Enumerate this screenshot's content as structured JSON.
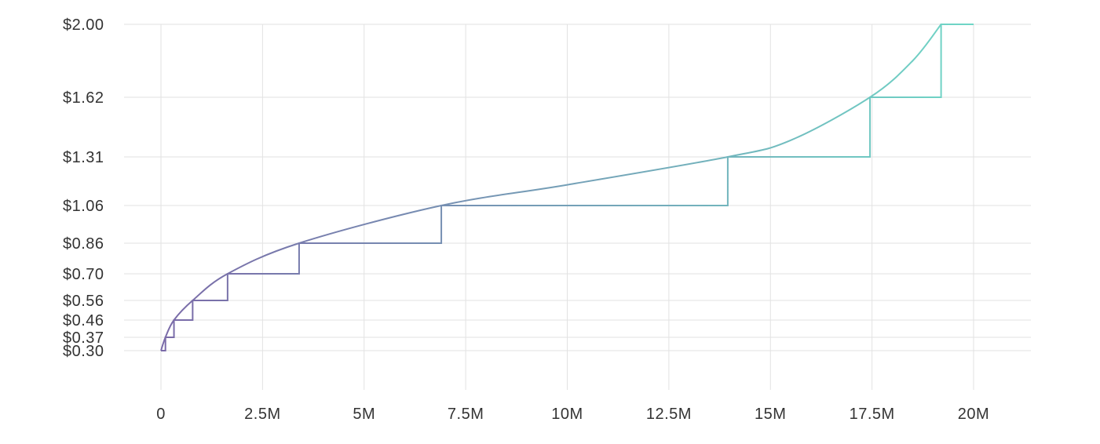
{
  "chart_data": {
    "type": "line",
    "title": "",
    "xlabel": "",
    "ylabel": "",
    "grid": true,
    "xlim": [
      0,
      20000000
    ],
    "x_ticks": [
      {
        "value": 0,
        "label": "0"
      },
      {
        "value": 2500000,
        "label": "2.5M"
      },
      {
        "value": 5000000,
        "label": "5M"
      },
      {
        "value": 7500000,
        "label": "7.5M"
      },
      {
        "value": 10000000,
        "label": "10M"
      },
      {
        "value": 12500000,
        "label": "12.5M"
      },
      {
        "value": 15000000,
        "label": "15M"
      },
      {
        "value": 17500000,
        "label": "17.5M"
      },
      {
        "value": 20000000,
        "label": "20M"
      }
    ],
    "y_ticks": [
      {
        "value": 0.3,
        "label": "$0.30"
      },
      {
        "value": 0.37,
        "label": "$0.37"
      },
      {
        "value": 0.46,
        "label": "$0.46"
      },
      {
        "value": 0.56,
        "label": "$0.56"
      },
      {
        "value": 0.7,
        "label": "$0.70"
      },
      {
        "value": 0.86,
        "label": "$0.86"
      },
      {
        "value": 1.06,
        "label": "$1.06"
      },
      {
        "value": 1.31,
        "label": "$1.31"
      },
      {
        "value": 1.62,
        "label": "$1.62"
      },
      {
        "value": 2.0,
        "label": "$2.00"
      }
    ],
    "series": [
      {
        "kind": "curve",
        "points": [
          [
            0,
            0.3
          ],
          [
            110000,
            0.37
          ],
          [
            320000,
            0.46
          ],
          [
            780000,
            0.56
          ],
          [
            1640000,
            0.7
          ],
          [
            3400000,
            0.86
          ],
          [
            6900000,
            1.06
          ],
          [
            10000000,
            1.16
          ],
          [
            13950000,
            1.31
          ],
          [
            15500000,
            1.39
          ],
          [
            17450000,
            1.62
          ],
          [
            18500000,
            1.8
          ],
          [
            19200000,
            2.0
          ]
        ],
        "end_flat_to": 20000000
      },
      {
        "kind": "step",
        "points": [
          [
            0,
            0.3
          ],
          [
            110000,
            0.3
          ],
          [
            110000,
            0.37
          ],
          [
            320000,
            0.37
          ],
          [
            320000,
            0.46
          ],
          [
            780000,
            0.46
          ],
          [
            780000,
            0.56
          ],
          [
            1640000,
            0.56
          ],
          [
            1640000,
            0.7
          ],
          [
            3400000,
            0.7
          ],
          [
            3400000,
            0.86
          ],
          [
            6900000,
            0.86
          ],
          [
            6900000,
            1.06
          ],
          [
            13950000,
            1.06
          ],
          [
            13950000,
            1.31
          ],
          [
            17450000,
            1.31
          ],
          [
            17450000,
            1.62
          ],
          [
            19200000,
            1.62
          ],
          [
            19200000,
            2.0
          ],
          [
            20000000,
            2.0
          ]
        ]
      }
    ],
    "colors": {
      "gradient_start": "#7a6aa8",
      "gradient_end": "#6fd6c6",
      "grid": "#e2e2e2",
      "tick_text": "#333333"
    }
  }
}
